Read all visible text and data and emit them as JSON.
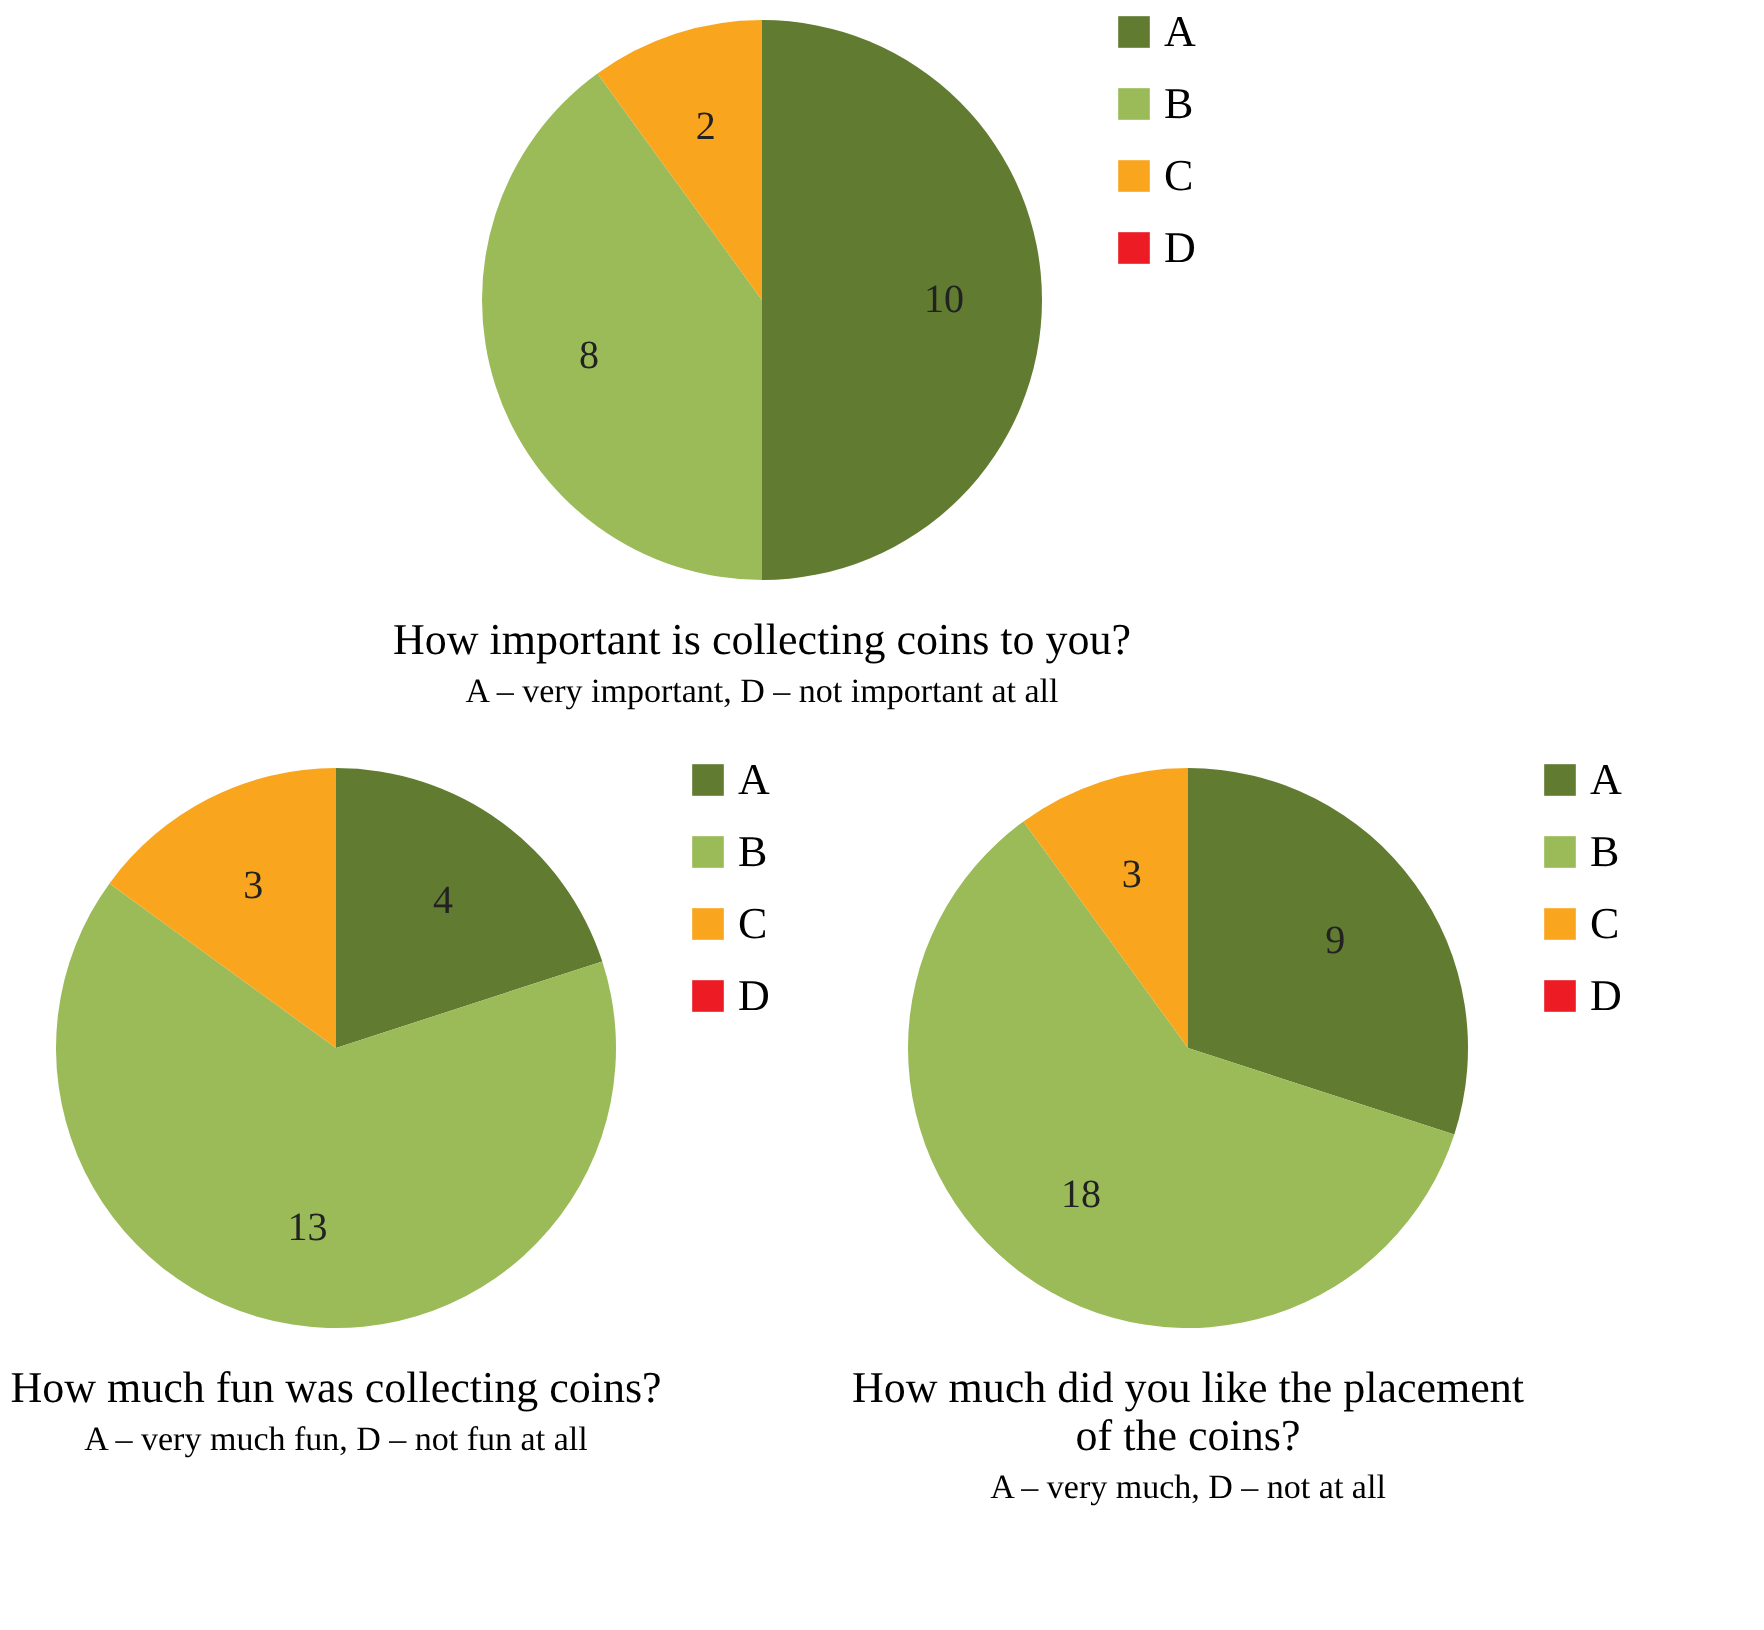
{
  "chart_data": [
    {
      "type": "pie",
      "title": "How important is collecting coins to you?",
      "subtitle": "A – very important, D – not important at all",
      "categories": [
        "A",
        "B",
        "C",
        "D"
      ],
      "values": [
        10,
        8,
        2,
        0
      ],
      "colors": [
        "#617b30",
        "#9bbb59",
        "#f9a61e",
        "#ed1c24"
      ],
      "value_labels": [
        "10",
        "8",
        "2",
        null
      ],
      "legend": "right"
    },
    {
      "type": "pie",
      "title": "How much fun was collecting coins?",
      "subtitle": "A – very much fun, D – not fun at all",
      "categories": [
        "A",
        "B",
        "C",
        "D"
      ],
      "values": [
        4,
        13,
        3,
        0
      ],
      "colors": [
        "#617b30",
        "#9bbb59",
        "#f9a61e",
        "#ed1c24"
      ],
      "value_labels": [
        "4",
        "13",
        "3",
        null
      ],
      "legend": "right"
    },
    {
      "type": "pie",
      "title": "How much did you like the placement of the coins?",
      "subtitle": "A – very much, D – not at all",
      "categories": [
        "A",
        "B",
        "C",
        "D"
      ],
      "values": [
        9,
        18,
        3,
        0
      ],
      "colors": [
        "#617b30",
        "#9bbb59",
        "#f9a61e",
        "#ed1c24"
      ],
      "value_labels": [
        "9",
        "18",
        "3",
        null
      ],
      "legend": "right"
    }
  ]
}
